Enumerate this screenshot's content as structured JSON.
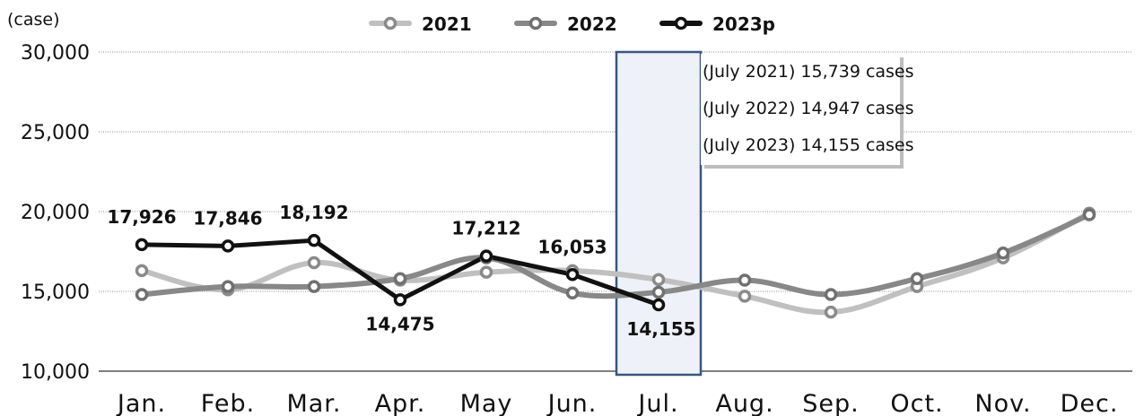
{
  "chart_data": {
    "type": "line",
    "unit_label": "(case)",
    "categories": [
      "Jan.",
      "Feb.",
      "Mar.",
      "Apr.",
      "May",
      "Jun.",
      "Jul.",
      "Aug.",
      "Sep.",
      "Oct.",
      "Nov.",
      "Dec."
    ],
    "ylim": [
      10000,
      30000
    ],
    "yticks": [
      "10,000",
      "15,000",
      "20,000",
      "25,000",
      "30,000"
    ],
    "ytick_values": [
      10000,
      15000,
      20000,
      25000,
      30000
    ],
    "grid": true,
    "legend_position": "top-center",
    "series": [
      {
        "name": "2021",
        "color": "#c0c0c0",
        "marker": "#8a8a8a",
        "values": [
          16300,
          15100,
          16800,
          15700,
          16200,
          16300,
          15739,
          14700,
          13700,
          15300,
          17100,
          19900
        ]
      },
      {
        "name": "2022",
        "color": "#888888",
        "marker": "#707070",
        "values": [
          14800,
          15300,
          15300,
          15800,
          17100,
          14900,
          14947,
          15700,
          14800,
          15800,
          17400,
          19800
        ]
      },
      {
        "name": "2023p",
        "color": "#111111",
        "marker": "#111111",
        "values": [
          17926,
          17846,
          18192,
          14475,
          17212,
          16053,
          14155,
          null,
          null,
          null,
          null,
          null
        ]
      }
    ],
    "data_labels": [
      "17,926",
      "17,846",
      "18,192",
      "14,475",
      "17,212",
      "16,053",
      "14,155"
    ],
    "highlight_category": "Jul.",
    "annotations": [
      "(July 2021) 15,739 cases",
      "(July 2022) 14,947 cases",
      "(July 2023) 14,155 cases"
    ]
  }
}
